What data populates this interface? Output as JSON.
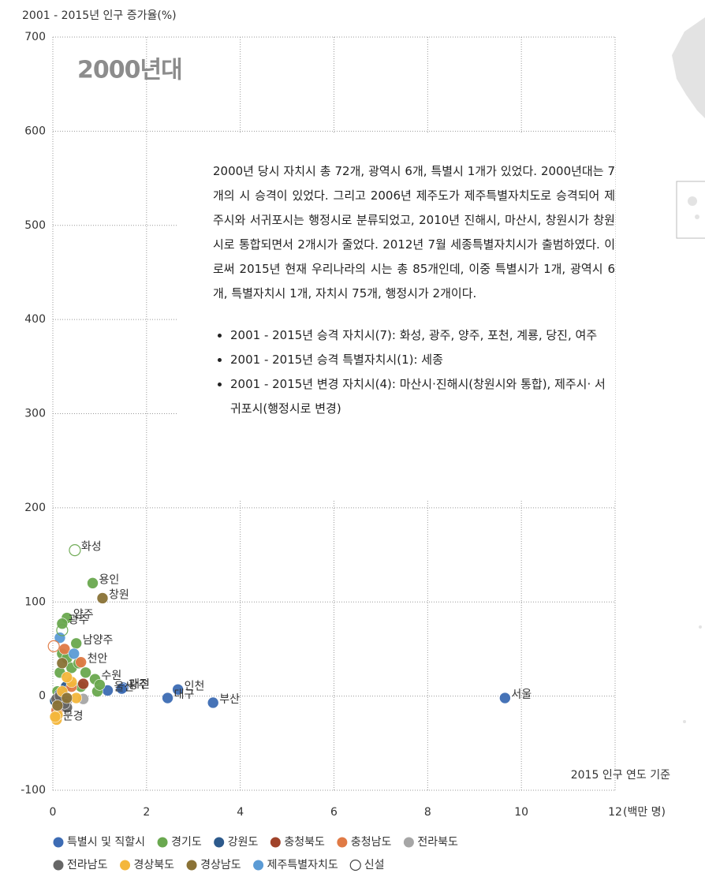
{
  "chart_data": {
    "type": "scatter",
    "y_axis_title": "2001 - 2015년 인구 증가율(%)",
    "x_axis_unit": "(백만 명)",
    "annotation": "2000년대",
    "source_note": "2015 인구 연도 기준",
    "text_box": {
      "paragraph": "2000년 당시 자치시 총 72개, 광역시 6개, 특별시 1개가 있었다. 2000년대는 7개의 시 승격이 있었다. 그리고 2006년 제주도가 제주특별자치도로 승격되어 제주시와 서귀포시는 행정시로 분류되었고, 2010년 진해시, 마산시, 창원시가 창원시로 통합되면서 2개시가 줄었다. 2012년 7월 세종특별자치시가 출범하였다. 이로써 2015년 현재 우리나라의 시는 총 85개인데, 이중 특별시가 1개, 광역시 6개, 특별자치시 1개, 자치시 75개, 행정시가 2개이다.",
      "bullets": [
        "2001 - 2015년 승격 자치시(7): 화성, 광주, 양주,  포천, 계룡, 당진, 여주",
        "2001 - 2015년 승격 특별자치시(1): 세종",
        "2001 - 2015년 변경 자치시(4): 마산시·진해시(창원시와 통합), 제주시· 서귀포시(행정시로 변경)"
      ]
    },
    "xlim": [
      0,
      12
    ],
    "xticks": [
      0,
      2,
      4,
      6,
      8,
      10,
      12
    ],
    "ylim": [
      -100,
      700
    ],
    "yticks": [
      -100,
      0,
      100,
      200,
      300,
      400,
      500,
      600,
      700
    ],
    "grid": true,
    "series": [
      {
        "name": "특별시 및 직할시",
        "color": "#3d6cb4",
        "x": [
          9.65,
          3.42,
          2.45,
          2.67,
          1.5,
          1.47,
          1.17
        ],
        "values": [
          -2,
          -7,
          -2,
          7,
          9,
          8,
          6
        ],
        "labels": [
          "서울",
          "부산",
          "대구",
          "인천",
          "대전",
          "광주",
          "울산"
        ]
      },
      {
        "name": "경기도",
        "color": "#6aa84f",
        "x": [
          0.85,
          0.5,
          0.9,
          0.3,
          0.2,
          0.15,
          0.2,
          0.3,
          0.4,
          0.55,
          0.7,
          0.6,
          0.95,
          1.0,
          0.1,
          0.05
        ],
        "values": [
          120,
          56,
          18,
          83,
          77,
          25,
          45,
          40,
          30,
          35,
          25,
          10,
          5,
          12,
          5,
          -5
        ],
        "labels": [
          "용인",
          "남양주",
          "수원",
          "양주",
          "광주",
          null,
          null,
          null,
          null,
          null,
          null,
          null,
          null,
          null,
          null,
          null
        ]
      },
      {
        "name": "강원도",
        "color": "#2d5a8c",
        "x": [
          0.28,
          0.2,
          0.1,
          0.15,
          0.05
        ],
        "values": [
          10,
          -3,
          -8,
          2,
          -5
        ]
      },
      {
        "name": "충청북도",
        "color": "#a0432a",
        "x": [
          0.65,
          0.15,
          0.1
        ],
        "values": [
          13,
          -3,
          -10
        ]
      },
      {
        "name": "충청남도",
        "color": "#e07a45",
        "x": [
          0.6,
          0.25,
          0.1,
          0.12,
          0.08,
          0.15,
          0.4
        ],
        "values": [
          36,
          50,
          -5,
          -10,
          -15,
          -12,
          10
        ],
        "labels": [
          "천안",
          null,
          null,
          null,
          null,
          null,
          null
        ]
      },
      {
        "name": "전라북도",
        "color": "#a6a6a6",
        "x": [
          0.65,
          0.3,
          0.12
        ],
        "values": [
          -3,
          -5,
          -8
        ]
      },
      {
        "name": "전라남도",
        "color": "#666666",
        "x": [
          0.3,
          0.25,
          0.08,
          0.15
        ],
        "values": [
          -12,
          -8,
          -3,
          0
        ]
      },
      {
        "name": "경상북도",
        "color": "#f4b73c",
        "x": [
          0.08,
          0.5,
          0.4,
          0.3,
          0.1,
          0.05,
          0.2
        ],
        "values": [
          -25,
          -2,
          15,
          20,
          -20,
          -22,
          5
        ],
        "labels": [
          "문경",
          null,
          null,
          null,
          null,
          null,
          null
        ]
      },
      {
        "name": "경상남도",
        "color": "#8a7236",
        "x": [
          1.06,
          0.2,
          0.3,
          0.1
        ],
        "values": [
          104,
          35,
          -2,
          -10
        ],
        "labels": [
          "창원",
          null,
          null,
          null
        ]
      },
      {
        "name": "제주특별자치도",
        "color": "#5b9bd5",
        "x": [
          0.45,
          0.15
        ],
        "values": [
          45,
          62
        ]
      },
      {
        "name": "신설",
        "color": "#444444",
        "hollow": true,
        "point_colors": [
          "#6aa84f",
          "#6aa84f",
          "#e07a45"
        ],
        "x": [
          0.47,
          0.2,
          0.02
        ],
        "values": [
          155,
          70,
          53
        ],
        "labels": [
          "화성",
          null,
          null
        ]
      }
    ]
  }
}
